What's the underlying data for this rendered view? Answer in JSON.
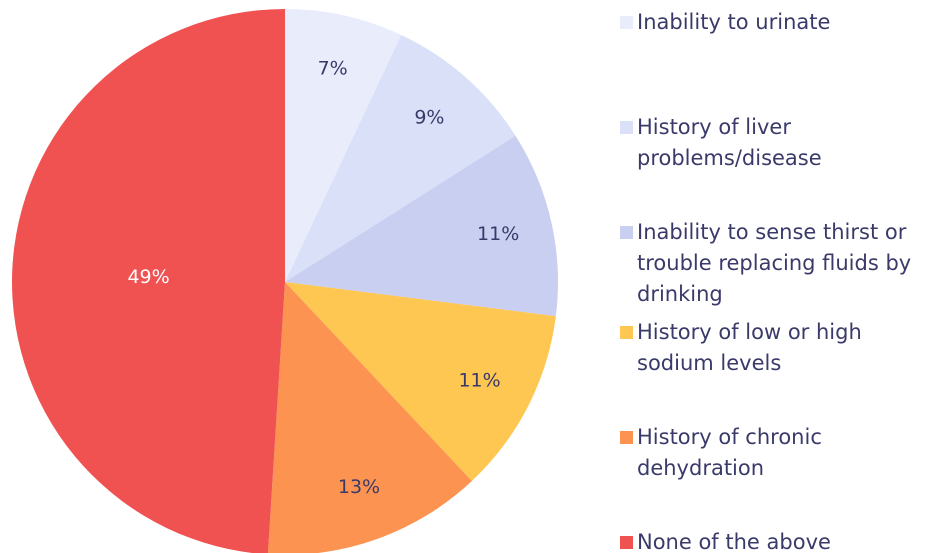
{
  "chart_data": {
    "type": "pie",
    "categories": [
      "Inability to urinate",
      "History of liver problems/disease",
      "Inability to sense thirst or trouble replacing fluids by drinking",
      "History of low or high sodium levels",
      "History of chronic dehydration",
      "None of the above"
    ],
    "values": [
      7,
      9,
      11,
      11,
      13,
      49
    ],
    "value_labels": [
      "7%",
      "9%",
      "11%",
      "11%",
      "13%",
      "49%"
    ],
    "colors": [
      "#e8ecfb",
      "#d9e0f8",
      "#c8cff0",
      "#fec752",
      "#fd9350",
      "#f05252"
    ],
    "legend": "right"
  }
}
